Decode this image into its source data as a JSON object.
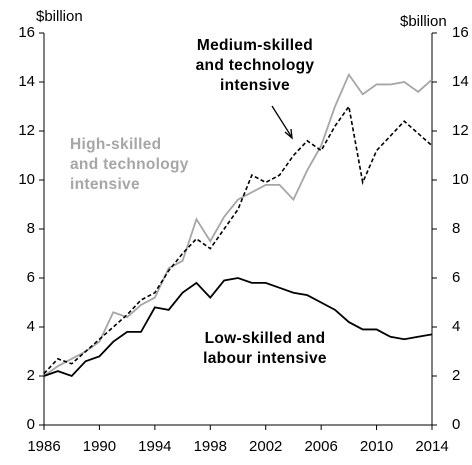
{
  "chart_data": {
    "type": "line",
    "y_unit": "$billion",
    "y2_unit": "$billion",
    "x": [
      1986,
      1987,
      1988,
      1989,
      1990,
      1991,
      1992,
      1993,
      1994,
      1995,
      1996,
      1997,
      1998,
      1999,
      2000,
      2001,
      2002,
      2003,
      2004,
      2005,
      2006,
      2007,
      2008,
      2009,
      2010,
      2011,
      2012,
      2013,
      2014
    ],
    "xlim": [
      1986,
      2014
    ],
    "xticks": [
      1986,
      1990,
      1994,
      1998,
      2002,
      2006,
      2010,
      2014
    ],
    "ylim": [
      0,
      16
    ],
    "yticks": [
      0,
      2,
      4,
      6,
      8,
      10,
      12,
      14,
      16
    ],
    "y2lim": [
      0,
      16
    ],
    "y2ticks": [
      0,
      2,
      4,
      6,
      8,
      10,
      12,
      14,
      16
    ],
    "grid": false,
    "series": [
      {
        "label": [
          "High-skilled",
          "and technology",
          "intensive"
        ],
        "color": "#a6a6a6",
        "dash": false,
        "values": [
          2.0,
          2.4,
          2.7,
          3.0,
          3.4,
          4.6,
          4.4,
          4.9,
          5.2,
          6.4,
          6.7,
          8.4,
          7.5,
          8.5,
          9.2,
          9.5,
          9.8,
          9.8,
          9.2,
          10.4,
          11.4,
          13.0,
          14.3,
          13.5,
          13.9,
          13.9,
          14.0,
          13.6,
          14.1
        ]
      },
      {
        "label": [
          "Medium-skilled",
          "and technology",
          "intensive"
        ],
        "color": "#000000",
        "dash": true,
        "values": [
          2.1,
          2.7,
          2.5,
          3.0,
          3.5,
          4.0,
          4.5,
          5.1,
          5.4,
          6.3,
          7.0,
          7.6,
          7.2,
          8.0,
          8.8,
          10.2,
          9.9,
          10.2,
          11.0,
          11.6,
          11.2,
          12.2,
          13.0,
          9.9,
          11.2,
          11.8,
          12.4,
          11.9,
          11.4
        ]
      },
      {
        "label": [
          "Low-skilled and",
          "labour intensive"
        ],
        "color": "#000000",
        "dash": false,
        "values": [
          2.0,
          2.2,
          2.0,
          2.6,
          2.8,
          3.4,
          3.8,
          3.8,
          4.8,
          4.7,
          5.4,
          5.8,
          5.2,
          5.9,
          6.0,
          5.8,
          5.8,
          5.6,
          5.4,
          5.3,
          5.0,
          4.7,
          4.2,
          3.9,
          3.9,
          3.6,
          3.5,
          3.6,
          3.7
        ]
      }
    ]
  }
}
